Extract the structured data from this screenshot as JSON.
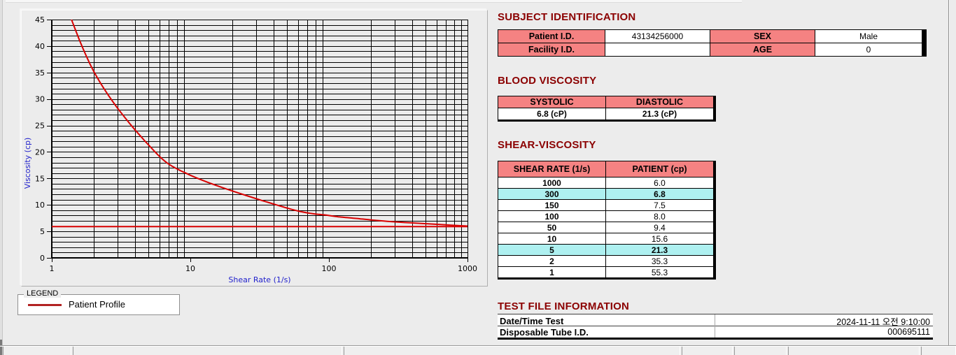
{
  "colors": {
    "section_title": "#8b0000",
    "header_pink": "#f58282",
    "highlight_cyan": "#aef0f0",
    "series_red": "#d80000",
    "legend_red": "#b22222",
    "axis_label_blue": "#2222cc"
  },
  "chart_data": {
    "type": "line",
    "x_scale": "log",
    "x": [
      1,
      2,
      5,
      10,
      50,
      100,
      150,
      300,
      1000
    ],
    "series": [
      {
        "name": "Patient Profile",
        "values": [
          55.3,
          35.3,
          21.3,
          15.6,
          9.4,
          8.0,
          7.5,
          6.8,
          6.0
        ],
        "color": "#d80000"
      }
    ],
    "reference_line_y": 5.9,
    "title": "",
    "xlabel": "Shear Rate (1/s)",
    "ylabel": "Viscosity (cp)",
    "xlim": [
      1,
      1000
    ],
    "ylim": [
      0,
      45
    ],
    "y_tick_step": 5,
    "y_minor_step": 1,
    "x_ticks": [
      1,
      10,
      100,
      1000
    ],
    "grid": true,
    "legend": {
      "title": "LEGEND",
      "position": "below-chart",
      "entries": [
        {
          "label": "Patient Profile",
          "color": "#b22222"
        }
      ]
    }
  },
  "subject_identification": {
    "title": "SUBJECT IDENTIFICATION",
    "patient_id_label": "Patient I.D.",
    "patient_id": "43134256000",
    "sex_label": "SEX",
    "sex": "Male",
    "facility_id_label": "Facility I.D.",
    "facility_id": "",
    "age_label": "AGE",
    "age": "0"
  },
  "blood_viscosity": {
    "title": "BLOOD VISCOSITY",
    "systolic_label": "SYSTOLIC",
    "diastolic_label": "DIASTOLIC",
    "systolic_value": "6.8 (cP)",
    "diastolic_value": "21.3 (cP)"
  },
  "shear_viscosity": {
    "title": "SHEAR-VISCOSITY",
    "col_rate": "SHEAR RATE (1/s)",
    "col_patient": "PATIENT (cp)",
    "rows": [
      {
        "rate": "1000",
        "value": "6.0",
        "highlight": false
      },
      {
        "rate": "300",
        "value": "6.8",
        "highlight": true
      },
      {
        "rate": "150",
        "value": "7.5",
        "highlight": false
      },
      {
        "rate": "100",
        "value": "8.0",
        "highlight": false
      },
      {
        "rate": "50",
        "value": "9.4",
        "highlight": false
      },
      {
        "rate": "10",
        "value": "15.6",
        "highlight": false
      },
      {
        "rate": "5",
        "value": "21.3",
        "highlight": true
      },
      {
        "rate": "2",
        "value": "35.3",
        "highlight": false
      },
      {
        "rate": "1",
        "value": "55.3",
        "highlight": false
      }
    ]
  },
  "test_file_information": {
    "title": "TEST FILE INFORMATION",
    "date_label": "Date/Time Test",
    "date_value": "2024-11-11   오전 9:10:00",
    "tube_label": "Disposable Tube I.D.",
    "tube_value": "000695111"
  }
}
